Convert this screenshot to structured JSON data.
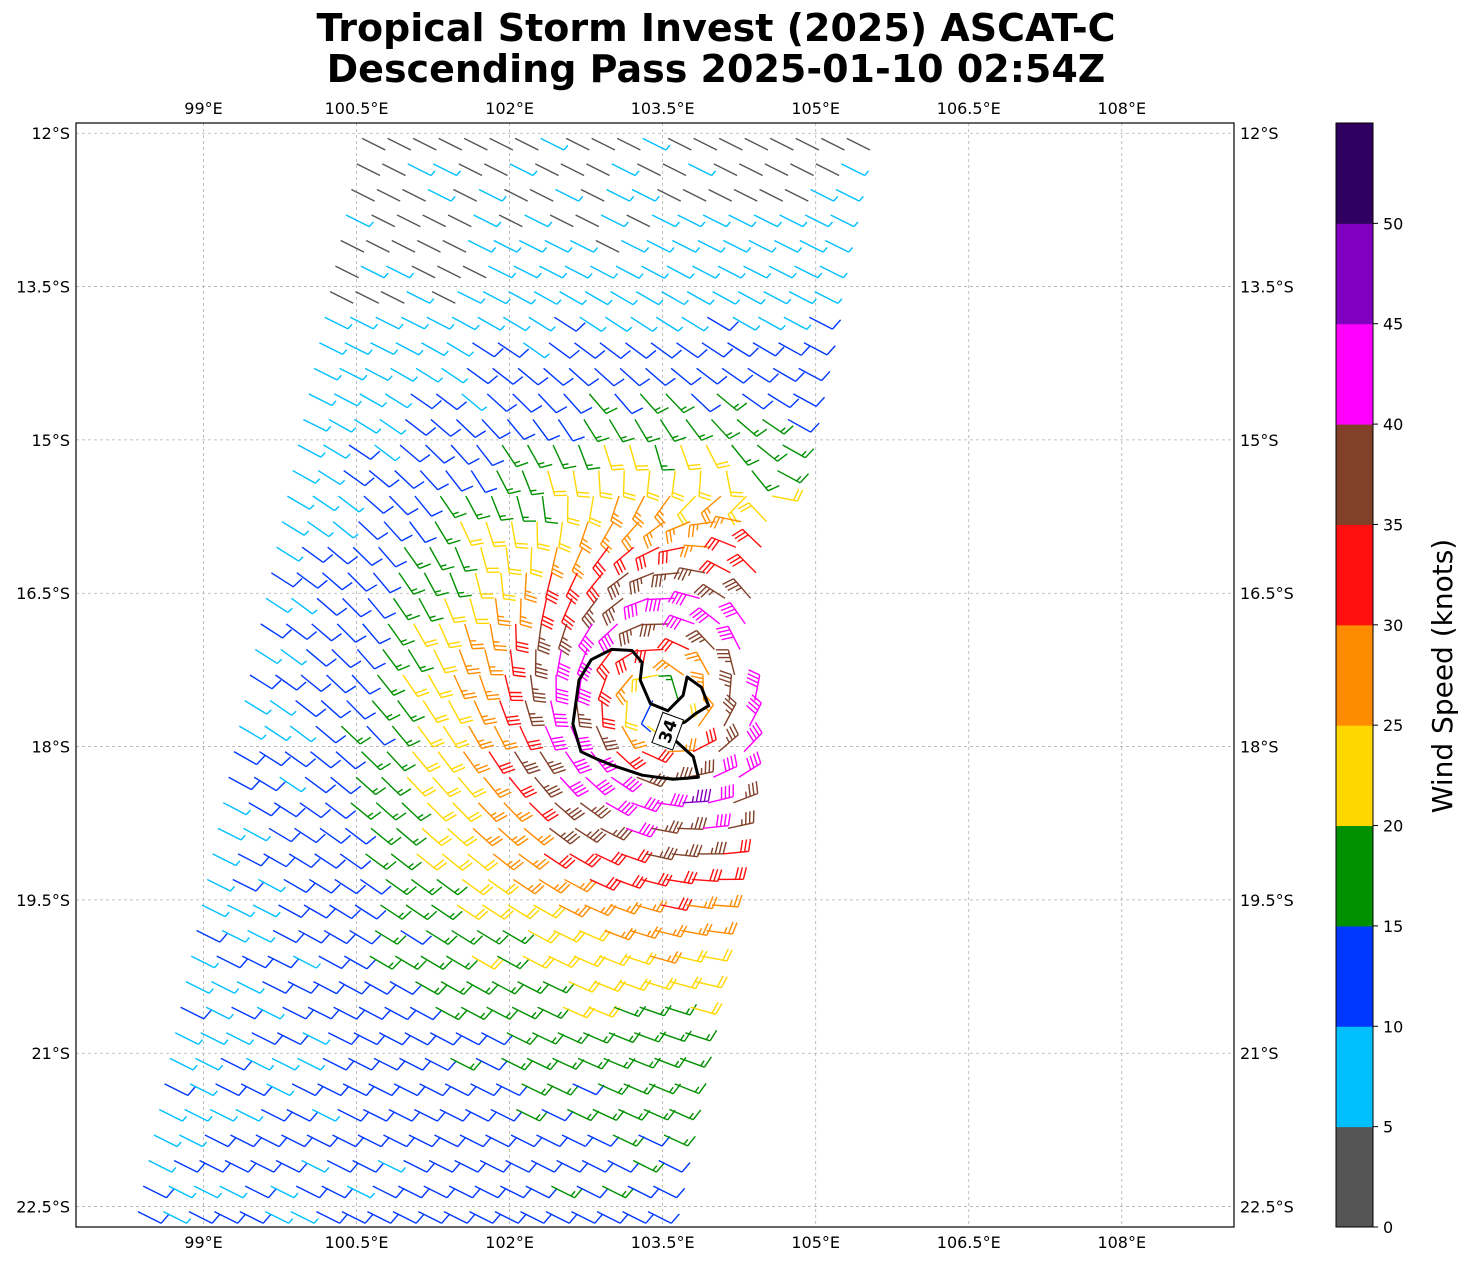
{
  "title": {
    "line1": "Tropical Storm Invest (2025) ASCAT-C",
    "line2": "Descending Pass 2025-01-10 02:54Z"
  },
  "map": {
    "lon_range": [
      97.75,
      109.1
    ],
    "lat_range": [
      -22.7,
      -11.9
    ],
    "lon_ticks": [
      {
        "value": 99,
        "label": "99°E"
      },
      {
        "value": 100.5,
        "label": "100.5°E"
      },
      {
        "value": 102,
        "label": "102°E"
      },
      {
        "value": 103.5,
        "label": "103.5°E"
      },
      {
        "value": 105,
        "label": "105°E"
      },
      {
        "value": 106.5,
        "label": "106.5°E"
      },
      {
        "value": 108,
        "label": "108°E"
      }
    ],
    "lat_ticks": [
      {
        "value": -12,
        "label": "12°S"
      },
      {
        "value": -13.5,
        "label": "13.5°S"
      },
      {
        "value": -15,
        "label": "15°S"
      },
      {
        "value": -16.5,
        "label": "16.5°S"
      },
      {
        "value": -18,
        "label": "18°S"
      },
      {
        "value": -19.5,
        "label": "19.5°S"
      },
      {
        "value": -21,
        "label": "21°S"
      },
      {
        "value": -22.5,
        "label": "22.5°S"
      }
    ],
    "grid": true,
    "storm_center": {
      "lon": 103.5,
      "lat": -17.6
    },
    "contour": {
      "value_label": "34",
      "points": [
        [
          102.62,
          -17.78
        ],
        [
          102.68,
          -17.35
        ],
        [
          102.8,
          -17.15
        ],
        [
          103.0,
          -17.05
        ],
        [
          103.2,
          -17.06
        ],
        [
          103.3,
          -17.18
        ],
        [
          103.28,
          -17.35
        ],
        [
          103.38,
          -17.58
        ],
        [
          103.55,
          -17.65
        ],
        [
          103.7,
          -17.5
        ],
        [
          103.74,
          -17.32
        ],
        [
          103.88,
          -17.42
        ],
        [
          103.95,
          -17.6
        ],
        [
          103.82,
          -17.68
        ],
        [
          103.72,
          -17.76
        ],
        [
          103.55,
          -17.82
        ],
        [
          103.6,
          -17.92
        ],
        [
          103.8,
          -18.1
        ],
        [
          103.85,
          -18.3
        ],
        [
          103.6,
          -18.32
        ],
        [
          103.3,
          -18.28
        ],
        [
          103.0,
          -18.18
        ],
        [
          102.85,
          -18.12
        ],
        [
          102.7,
          -18.05
        ]
      ]
    }
  },
  "colorbar": {
    "label": "Wind Speed (knots)",
    "bins": [
      {
        "from": 0,
        "to": 5,
        "color": "#555555"
      },
      {
        "from": 5,
        "to": 10,
        "color": "#00bfff"
      },
      {
        "from": 10,
        "to": 15,
        "color": "#0038ff"
      },
      {
        "from": 15,
        "to": 20,
        "color": "#009000"
      },
      {
        "from": 20,
        "to": 25,
        "color": "#ffd700"
      },
      {
        "from": 25,
        "to": 30,
        "color": "#ff8c00"
      },
      {
        "from": 30,
        "to": 35,
        "color": "#ff0f0f"
      },
      {
        "from": 35,
        "to": 40,
        "color": "#80402a"
      },
      {
        "from": 40,
        "to": 45,
        "color": "#ff00ff"
      },
      {
        "from": 45,
        "to": 50,
        "color": "#8000c0"
      },
      {
        "from": 50,
        "to": 55,
        "color": "#300060"
      }
    ],
    "ticks": [
      {
        "value": 0,
        "label": "0"
      },
      {
        "value": 5,
        "label": "5"
      },
      {
        "value": 10,
        "label": "10"
      },
      {
        "value": 15,
        "label": "15"
      },
      {
        "value": 20,
        "label": "20"
      },
      {
        "value": 25,
        "label": "25"
      },
      {
        "value": 30,
        "label": "30"
      },
      {
        "value": 35,
        "label": "35"
      },
      {
        "value": 40,
        "label": "40"
      },
      {
        "value": 45,
        "label": "45"
      },
      {
        "value": 50,
        "label": "50"
      }
    ]
  },
  "swath": {
    "corners": [
      [
        100.45,
        -11.95
      ],
      [
        105.55,
        -11.95
      ],
      [
        103.35,
        -22.7
      ],
      [
        98.2,
        -22.7
      ]
    ],
    "barb_spacing_deg": 0.25
  }
}
